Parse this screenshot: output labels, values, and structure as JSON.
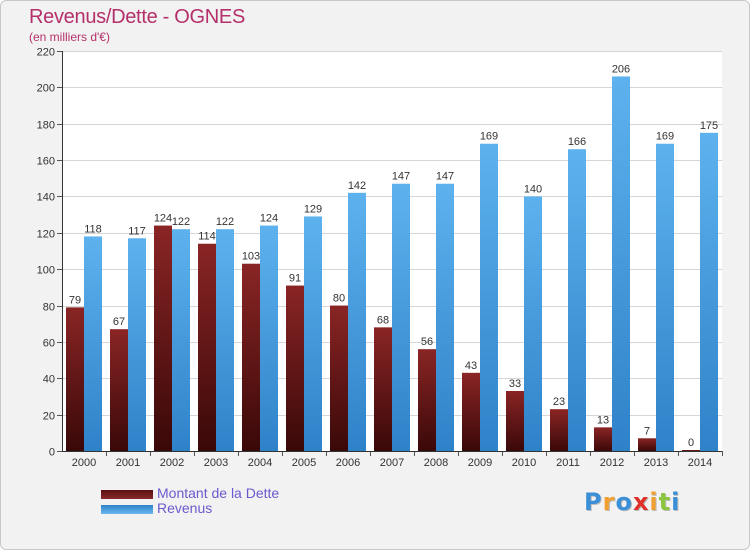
{
  "header": {
    "title": "Revenus/Dette - OGNES",
    "subtitle": "(en milliers d'€)"
  },
  "colors": {
    "dette": "#7a1f1f",
    "revenus": "#4aa3e6",
    "title": "#b5306b",
    "legend_text": "#6a5acd"
  },
  "chart_data": {
    "type": "bar",
    "title": "Revenus/Dette - OGNES",
    "subtitle": "(en milliers d'€)",
    "categories": [
      "2000",
      "2001",
      "2002",
      "2003",
      "2004",
      "2005",
      "2006",
      "2007",
      "2008",
      "2009",
      "2010",
      "2011",
      "2012",
      "2013",
      "2014"
    ],
    "series": [
      {
        "name": "Montant de la Dette",
        "values": [
          79,
          67,
          124,
          114,
          103,
          91,
          80,
          68,
          56,
          43,
          33,
          23,
          13,
          7,
          0
        ]
      },
      {
        "name": "Revenus",
        "values": [
          118,
          117,
          122,
          122,
          124,
          129,
          142,
          147,
          147,
          169,
          140,
          166,
          206,
          169,
          175
        ]
      }
    ],
    "ylim": [
      0,
      220
    ],
    "yticks": [
      0,
      20,
      40,
      60,
      80,
      100,
      120,
      140,
      160,
      180,
      200,
      220
    ],
    "grid": true,
    "legend_position": "bottom-left",
    "xlabel": "",
    "ylabel": ""
  },
  "legend": {
    "items": [
      {
        "label": "Montant de la Dette"
      },
      {
        "label": "Revenus"
      }
    ]
  },
  "logo": {
    "letters": [
      "P",
      "r",
      "o",
      "x",
      "i",
      "t",
      "i"
    ],
    "colors": [
      "#3a8fd6",
      "#f0a030",
      "#3a8fd6",
      "#e0302a",
      "#f0a030",
      "#8cc63f",
      "#3a8fd6"
    ]
  }
}
